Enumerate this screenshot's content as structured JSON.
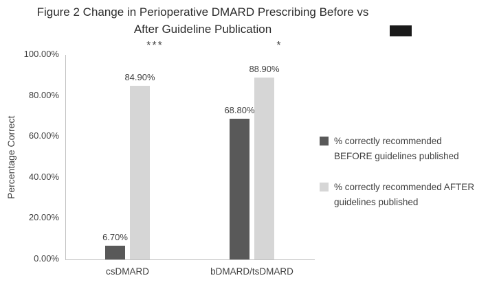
{
  "title": {
    "line1": "Figure 2 Change in Perioperative DMARD Prescribing Before vs",
    "line2": "After Guideline Publication"
  },
  "chart_data": {
    "type": "bar",
    "categories": [
      "csDMARD",
      "bDMARD/tsDMARD"
    ],
    "series": [
      {
        "name": "% correctly recommended BEFORE guidelines published",
        "color": "#595959",
        "values": [
          6.7,
          68.8
        ],
        "value_labels": [
          "6.70%",
          "68.80%"
        ]
      },
      {
        "name": "% correctly recommended AFTER guidelines published",
        "color": "#d6d6d6",
        "values": [
          84.9,
          88.9
        ],
        "value_labels": [
          "84.90%",
          "88.90%"
        ]
      }
    ],
    "significance_markers": [
      "***",
      "*"
    ],
    "title": "Figure 2 Change in Perioperative DMARD Prescribing Before vs After Guideline Publication",
    "xlabel": "",
    "ylabel": "Percentage Correct",
    "ylim": [
      0,
      100
    ],
    "yticks": [
      "0.00%",
      "20.00%",
      "40.00%",
      "60.00%",
      "80.00%",
      "100.00%"
    ],
    "grid": false,
    "legend_position": "right"
  },
  "colors": {
    "axis_line": "#c0c0c0",
    "text": "#404040",
    "title_text": "#2b2b2b",
    "bar_before": "#595959",
    "bar_after": "#d6d6d6"
  }
}
